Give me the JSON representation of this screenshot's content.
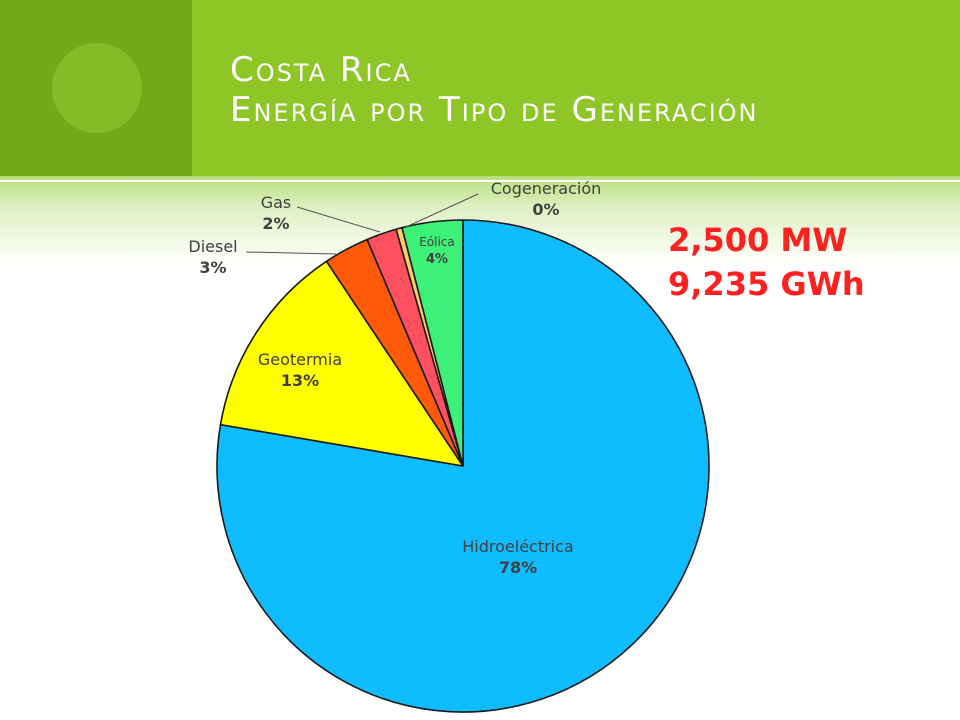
{
  "title": {
    "line1": "Costa Rica",
    "line2": "Energía por Tipo de Generación"
  },
  "totals": {
    "capacity": "2,500 MW",
    "energy": "9,235 GWh"
  },
  "chart_data": {
    "type": "pie",
    "start_angle_deg": 0,
    "direction": "clockwise",
    "slices": [
      {
        "label": "Hidroeléctrica",
        "value": 78,
        "value_label": "78%",
        "color": "#0fbcff"
      },
      {
        "label": "Geotermia",
        "value": 13,
        "value_label": "13%",
        "color": "#ffff00"
      },
      {
        "label": "Diesel",
        "value": 3,
        "value_label": "3%",
        "color": "#ff5a0a"
      },
      {
        "label": "Gas",
        "value": 2,
        "value_label": "2%",
        "color": "#ff5060"
      },
      {
        "label": "Cogeneración",
        "value": 0.4,
        "value_label": "0%",
        "color": "#ffcc66"
      },
      {
        "label": "Eólica",
        "value": 4,
        "value_label": "4%",
        "color": "#3cf078"
      }
    ]
  }
}
